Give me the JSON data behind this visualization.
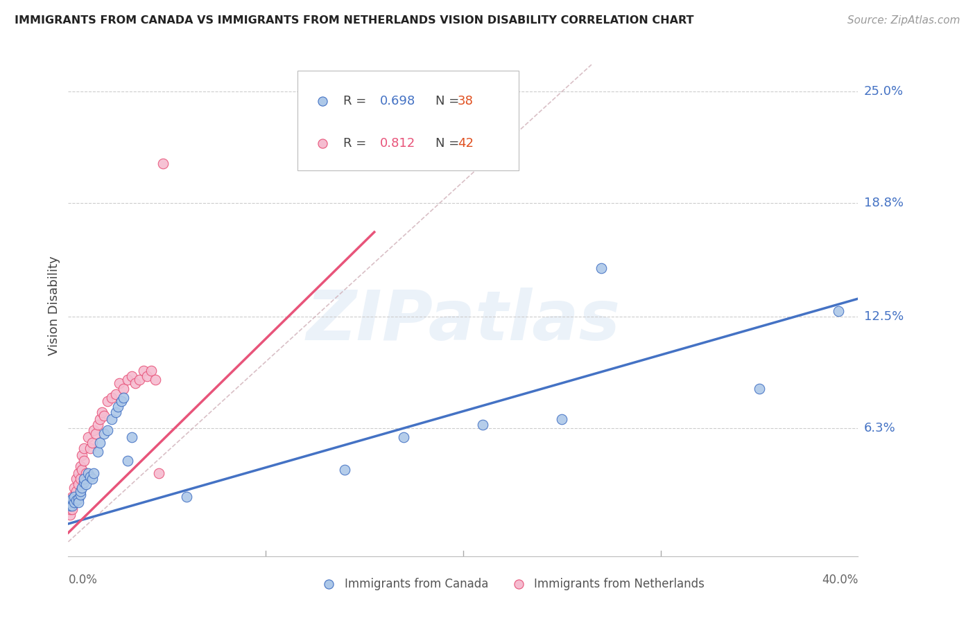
{
  "title": "IMMIGRANTS FROM CANADA VS IMMIGRANTS FROM NETHERLANDS VISION DISABILITY CORRELATION CHART",
  "source": "Source: ZipAtlas.com",
  "ylabel": "Vision Disability",
  "ytick_labels": [
    "25.0%",
    "18.8%",
    "12.5%",
    "6.3%"
  ],
  "ytick_values": [
    0.25,
    0.188,
    0.125,
    0.063
  ],
  "xmin": 0.0,
  "xmax": 0.4,
  "ymin": -0.008,
  "ymax": 0.27,
  "canada_R": "0.698",
  "canada_N": "38",
  "netherlands_R": "0.812",
  "netherlands_N": "42",
  "canada_color": "#adc8e8",
  "canada_line_color": "#4472c4",
  "netherlands_color": "#f5bcd0",
  "netherlands_line_color": "#e8547a",
  "diagonal_color": "#d0b0b8",
  "watermark_text": "ZIPatlas",
  "canada_x": [
    0.001,
    0.001,
    0.002,
    0.002,
    0.003,
    0.003,
    0.004,
    0.005,
    0.005,
    0.006,
    0.006,
    0.007,
    0.008,
    0.008,
    0.009,
    0.01,
    0.011,
    0.012,
    0.013,
    0.015,
    0.016,
    0.018,
    0.02,
    0.022,
    0.024,
    0.025,
    0.027,
    0.028,
    0.03,
    0.032,
    0.06,
    0.14,
    0.17,
    0.21,
    0.25,
    0.27,
    0.35,
    0.39
  ],
  "canada_y": [
    0.02,
    0.022,
    0.02,
    0.024,
    0.022,
    0.025,
    0.023,
    0.024,
    0.022,
    0.026,
    0.028,
    0.03,
    0.033,
    0.035,
    0.032,
    0.038,
    0.036,
    0.035,
    0.038,
    0.05,
    0.055,
    0.06,
    0.062,
    0.068,
    0.072,
    0.075,
    0.078,
    0.08,
    0.045,
    0.058,
    0.025,
    0.04,
    0.058,
    0.065,
    0.068,
    0.152,
    0.085,
    0.128
  ],
  "netherlands_x": [
    0.001,
    0.001,
    0.002,
    0.002,
    0.002,
    0.003,
    0.003,
    0.004,
    0.004,
    0.005,
    0.005,
    0.006,
    0.006,
    0.007,
    0.007,
    0.008,
    0.008,
    0.009,
    0.01,
    0.011,
    0.012,
    0.013,
    0.014,
    0.015,
    0.016,
    0.017,
    0.018,
    0.02,
    0.022,
    0.024,
    0.026,
    0.028,
    0.03,
    0.032,
    0.034,
    0.036,
    0.038,
    0.04,
    0.042,
    0.044,
    0.046,
    0.048
  ],
  "netherlands_y": [
    0.015,
    0.018,
    0.018,
    0.022,
    0.025,
    0.025,
    0.03,
    0.028,
    0.035,
    0.032,
    0.038,
    0.035,
    0.042,
    0.04,
    0.048,
    0.045,
    0.052,
    0.038,
    0.058,
    0.052,
    0.055,
    0.062,
    0.06,
    0.065,
    0.068,
    0.072,
    0.07,
    0.078,
    0.08,
    0.082,
    0.088,
    0.085,
    0.09,
    0.092,
    0.088,
    0.09,
    0.095,
    0.092,
    0.095,
    0.09,
    0.038,
    0.21
  ],
  "canada_trend": [
    0.0,
    0.4,
    0.01,
    0.135
  ],
  "netherlands_trend": [
    0.0,
    0.155,
    0.005,
    0.172
  ],
  "diagonal": [
    0.0,
    0.265,
    0.0,
    0.265
  ]
}
